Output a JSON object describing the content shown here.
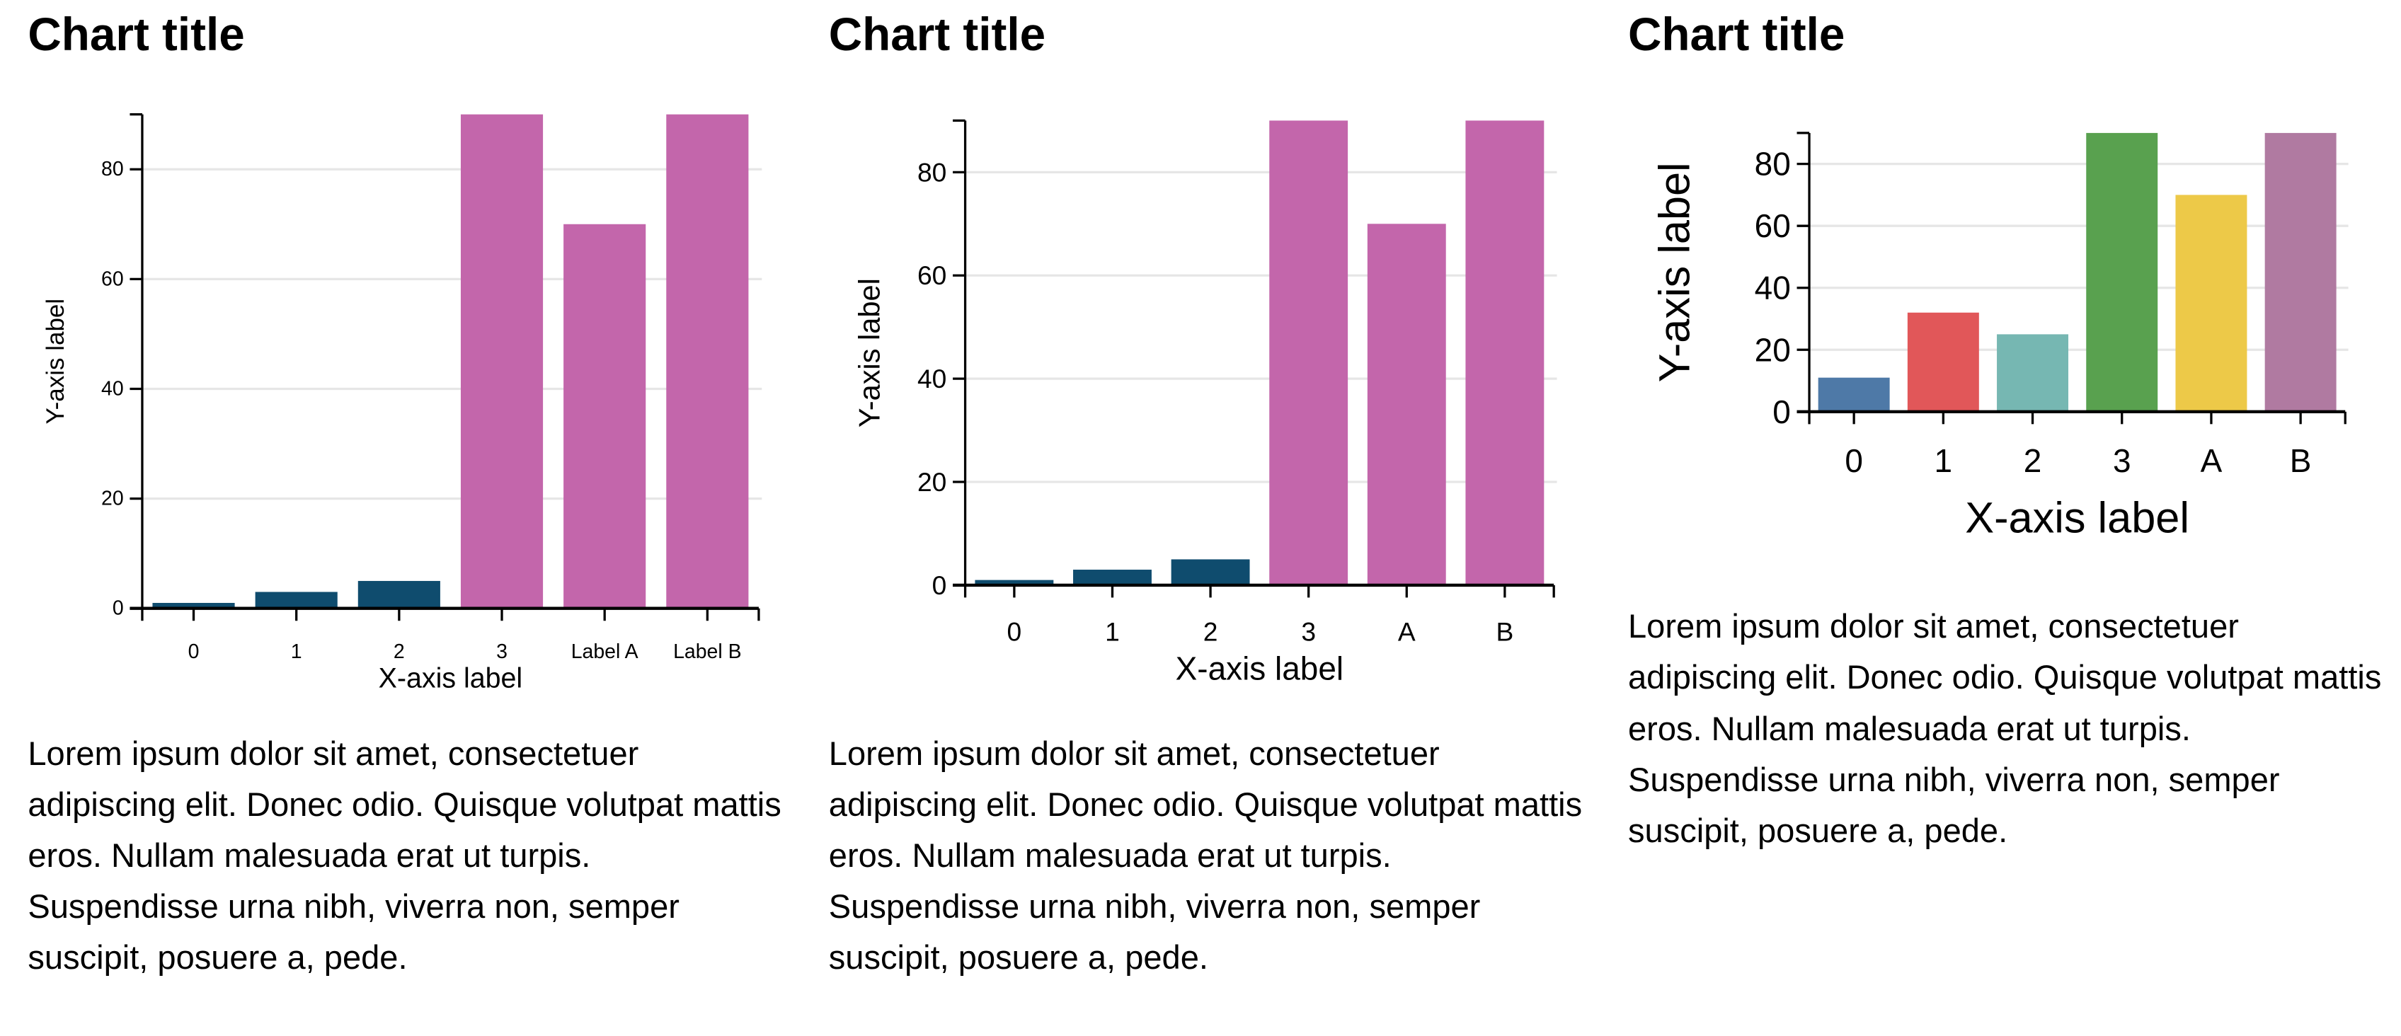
{
  "chart_data": [
    {
      "type": "bar",
      "title": "Chart title",
      "xlabel": "X-axis label",
      "ylabel": "Y-axis label",
      "categories": [
        "0",
        "1",
        "2",
        "3",
        "Label A",
        "Label B"
      ],
      "values": [
        1,
        3,
        5,
        90,
        70,
        90
      ],
      "colors": [
        "#0f4c6e",
        "#0f4c6e",
        "#0f4c6e",
        "#c366ab",
        "#c366ab",
        "#c366ab"
      ],
      "yticks": [
        0,
        20,
        40,
        60,
        80
      ],
      "ylim": [
        0,
        90
      ],
      "grid": true,
      "description": "Lorem ipsum dolor sit amet, consectetuer adipiscing elit. Donec odio. Quisque volutpat mattis eros. Nullam malesuada erat ut turpis. Suspendisse urna nibh, viverra non, semper suscipit, posuere a, pede."
    },
    {
      "type": "bar",
      "title": "Chart title",
      "xlabel": "X-axis label",
      "ylabel": "Y-axis label",
      "categories": [
        "0",
        "1",
        "2",
        "3",
        "A",
        "B"
      ],
      "values": [
        1,
        3,
        5,
        90,
        70,
        90
      ],
      "colors": [
        "#0f4c6e",
        "#0f4c6e",
        "#0f4c6e",
        "#c366ab",
        "#c366ab",
        "#c366ab"
      ],
      "yticks": [
        0,
        20,
        40,
        60,
        80
      ],
      "ylim": [
        0,
        90
      ],
      "grid": true,
      "description": "Lorem ipsum dolor sit amet, consectetuer adipiscing elit. Donec odio. Quisque volutpat mattis eros. Nullam malesuada erat ut turpis. Suspendisse urna nibh, viverra non, semper suscipit, posuere a, pede."
    },
    {
      "type": "bar",
      "title": "Chart title",
      "xlabel": "X-axis label",
      "ylabel": "Y-axis label",
      "categories": [
        "0",
        "1",
        "2",
        "3",
        "A",
        "B"
      ],
      "values": [
        11,
        32,
        25,
        90,
        70,
        90
      ],
      "colors": [
        "#4e79a7",
        "#e15759",
        "#76b7b2",
        "#59a14f",
        "#edc948",
        "#b07aa1"
      ],
      "yticks": [
        0,
        20,
        40,
        60,
        80
      ],
      "ylim": [
        0,
        90
      ],
      "grid": true,
      "description": "Lorem ipsum dolor sit amet, consectetuer adipiscing elit. Donec odio. Quisque volutpat mattis eros. Nullam malesuada erat ut turpis. Suspendisse urna nibh, viverra non, semper suscipit, posuere a, pede."
    }
  ]
}
